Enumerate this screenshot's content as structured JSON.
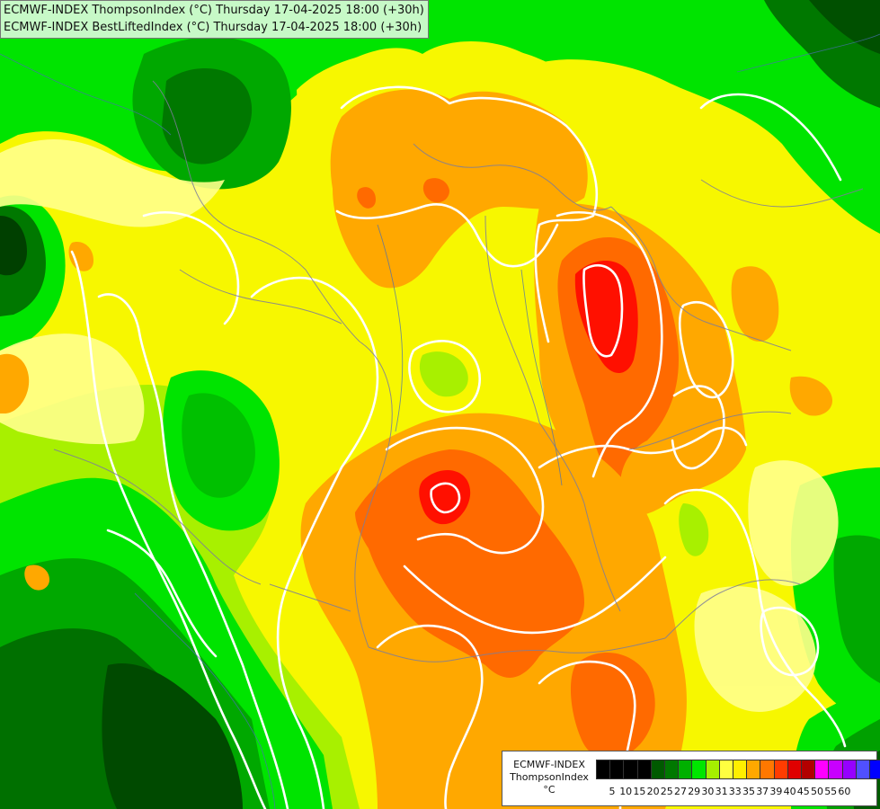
{
  "title": {
    "line1": "ECMWF-INDEX ThompsonIndex (°C) Thursday 17-04-2025 18:00 (+30h)",
    "line2": "ECMWF-INDEX BestLiftedIndex (°C) Thursday 17-04-2025 18:00 (+30h)"
  },
  "legend": {
    "model": "ECMWF-INDEX",
    "parameter": "ThompsonIndex",
    "unit": "°C",
    "ticks": [
      "5",
      "10",
      "15",
      "20",
      "25",
      "27",
      "29",
      "30",
      "31",
      "33",
      "35",
      "37",
      "39",
      "40",
      "45",
      "50",
      "55",
      "60"
    ],
    "colors": [
      "#000000",
      "#000000",
      "#000000",
      "#000000",
      "#005a00",
      "#007800",
      "#00b000",
      "#00e600",
      "#a6f000",
      "#ffff40",
      "#ffee00",
      "#ffa800",
      "#ff7800",
      "#ff3c00",
      "#e00000",
      "#b20000",
      "#ff00ff",
      "#c800ff",
      "#9600ff",
      "#5050ff",
      "#0000ff"
    ]
  },
  "colors": {
    "dark_green": "#006a00",
    "mid_green": "#00b400",
    "green": "#00e400",
    "lime": "#a8f000",
    "pale_yellow": "#ffff8c",
    "yellow": "#f7f700",
    "orange": "#ffa800",
    "dark_orange": "#ff6a00",
    "red": "#ff1000",
    "contour": "#ffffff",
    "border": "#8a8a8a"
  }
}
